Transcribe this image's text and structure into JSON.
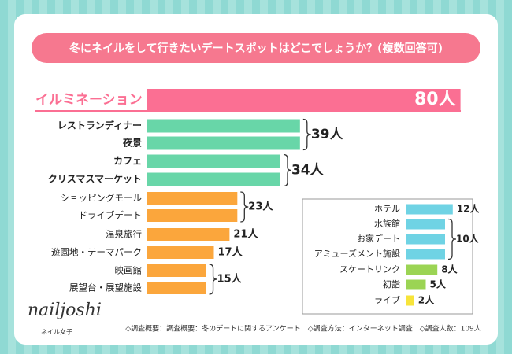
{
  "chart_data": [
    {
      "type": "bar",
      "orientation": "horizontal",
      "title": "冬にネイルをして行きたいデートスポットはどこでしょうか？(複数回答可)",
      "categories": [
        "イルミネーション",
        "レストランディナー",
        "夜景",
        "カフェ",
        "クリスマスマーケット",
        "ショッピングモール",
        "ドライブデート",
        "温泉旅行",
        "遊園地・テーマパーク",
        "映画館",
        "展望台・展望施設"
      ],
      "values": [
        80,
        39,
        39,
        34,
        34,
        23,
        23,
        21,
        17,
        15,
        15
      ],
      "value_labels": [
        "80人",
        "39人",
        null,
        "34人",
        null,
        "23人",
        null,
        "21人",
        "17人",
        "15人",
        null
      ],
      "colors": [
        "#fb6f93",
        "#68d6a8",
        "#68d6a8",
        "#68d6a8",
        "#68d6a8",
        "#fba63c",
        "#fba63c",
        "#fba63c",
        "#fba63c",
        "#fba63c",
        "#fba63c"
      ]
    },
    {
      "type": "bar",
      "orientation": "horizontal",
      "categories": [
        "ホテル",
        "水族館",
        "お家デート",
        "アミューズメント施設",
        "スケートリンク",
        "初詣",
        "ライブ"
      ],
      "values": [
        12,
        10,
        10,
        10,
        8,
        5,
        2
      ],
      "value_labels": [
        "12人",
        "10人",
        null,
        null,
        "8人",
        "5人",
        "2人"
      ],
      "colors": [
        "#6fd3e4",
        "#6fd3e4",
        "#6fd3e4",
        "#6fd3e4",
        "#9bd454",
        "#9bd454",
        "#f7e43a"
      ]
    }
  ],
  "footer": "◇調査概要：調査概要：冬のデートに関するアンケート　◇調査方法：インターネット調査　◇調査人数：109人",
  "logo": {
    "name": "nailjoshi",
    "subtitle": "ネイル女子"
  }
}
